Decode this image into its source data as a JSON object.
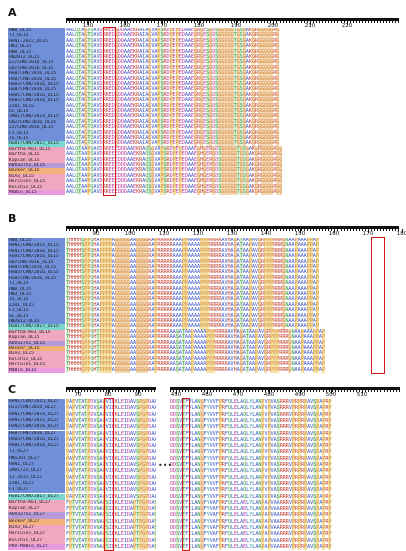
{
  "panels": [
    {
      "letter": "A",
      "ruler_labels": [
        "150",
        "160",
        "170",
        "180",
        "190",
        "200",
        "210",
        "220"
      ],
      "names": [
        {
          "label": "HN0_UL15",
          "group": "blue"
        },
        {
          "label": "TJ_UL15",
          "group": "blue"
        },
        {
          "label": "HeN1-2012_UL15",
          "group": "blue"
        },
        {
          "label": "HN3_UL15",
          "group": "blue"
        },
        {
          "label": "HN8_UL15",
          "group": "blue"
        },
        {
          "label": "HN2012_UL15",
          "group": "blue"
        },
        {
          "label": "ZJ/CHN/2016_UL15",
          "group": "blue"
        },
        {
          "label": "GD/CHN/2016_UL15",
          "group": "blue"
        },
        {
          "label": "HeB/CHN/2016_UL15",
          "group": "blue"
        },
        {
          "label": "HeB/CHN/2016_UL15",
          "group": "blue"
        },
        {
          "label": "HeB3/CHN/2016_UL15",
          "group": "blue"
        },
        {
          "label": "HuB/CHN/2016_UL15",
          "group": "blue"
        },
        {
          "label": "HeB1/CHN/2016_UL15",
          "group": "blue"
        },
        {
          "label": "HeB3/CHN/2016_UL15",
          "group": "blue"
        },
        {
          "label": "ZJ01_UL15",
          "group": "blue"
        },
        {
          "label": "SC_UL15",
          "group": "blue"
        },
        {
          "label": "SMD1/CHN/2014_UL15",
          "group": "blue"
        },
        {
          "label": "GD2/CHN/2016_UL15",
          "group": "blue"
        },
        {
          "label": "ZJ/CHN/2016_UL15",
          "group": "blue"
        },
        {
          "label": "FJ_UL15",
          "group": "blue"
        },
        {
          "label": "JS_UL15",
          "group": "blue"
        },
        {
          "label": "HuB1/CHN/2017_UL15",
          "group": "cyan"
        },
        {
          "label": "Bartha-K61_UL15",
          "group": "pink"
        },
        {
          "label": "Bartha_UL15",
          "group": "pink"
        },
        {
          "label": "Kaplan_UL15",
          "group": "pink"
        },
        {
          "label": "ADV32751_UL15",
          "group": "purple"
        },
        {
          "label": "Becker_UL15",
          "group": "orange"
        },
        {
          "label": "NIA3_UL15",
          "group": "pink"
        },
        {
          "label": "Hercules_UL15",
          "group": "pink"
        },
        {
          "label": "Kolchis_UL15",
          "group": "pink"
        },
        {
          "label": "MdBio_UL15",
          "group": "magenta"
        }
      ],
      "consensus": "AALQTAGTQAVDRREDGDDAAEKRAIAGVAPSRDPEPEDAAEGRGESGDSGGGGGTGSGAKGRGGGGGRG",
      "variant": "AALQTAAPQAVDRREEEDDDAAEKRAQSGVAPSRDPEPEDAAEGHGERGDSGGGGGTGSGAKGRGGGGRGG"
    },
    {
      "letter": "B",
      "ruler_labels": [
        "90",
        "100",
        "110",
        "120",
        "130",
        "140",
        "150",
        "160",
        "170",
        "180"
      ],
      "names": [
        {
          "label": "HN0_UL15",
          "group": "blue"
        },
        {
          "label": "HeN1/CHN/2015_UL15",
          "group": "blue"
        },
        {
          "label": "HeN1/CHN/2016_UL15",
          "group": "blue"
        },
        {
          "label": "AnH1/CHN/2016_UL15",
          "group": "blue"
        },
        {
          "label": "GD/CHN/2016_UL15",
          "group": "blue"
        },
        {
          "label": "HeB/CHN/2016_UL15",
          "group": "blue"
        },
        {
          "label": "HeB3/CHN/2016_UL15",
          "group": "blue"
        },
        {
          "label": "HuB/CHN/2016_UL15",
          "group": "blue"
        },
        {
          "label": "TJ_UL15",
          "group": "blue"
        },
        {
          "label": "HN8_UL15",
          "group": "blue"
        },
        {
          "label": "HN3_UL15",
          "group": "blue"
        },
        {
          "label": "JS_UL15",
          "group": "blue"
        },
        {
          "label": "ZJ01_UL15",
          "group": "blue"
        },
        {
          "label": "FJ_UL15",
          "group": "blue"
        },
        {
          "label": "SC_UL15",
          "group": "blue"
        },
        {
          "label": "HN2012_UL15",
          "group": "blue"
        },
        {
          "label": "HuB1/CHN/2017_UL15",
          "group": "cyan"
        },
        {
          "label": "Bartha-K61_UL15",
          "group": "pink"
        },
        {
          "label": "Kaplan_UL15",
          "group": "pink"
        },
        {
          "label": "ADV32751_UL15",
          "group": "purple"
        },
        {
          "label": "Becker_UL15",
          "group": "orange"
        },
        {
          "label": "NIA3_UL15",
          "group": "pink"
        },
        {
          "label": "Kolchis_UL15",
          "group": "pink"
        },
        {
          "label": "Hercules_UL15",
          "group": "pink"
        },
        {
          "label": "MdBio_UL15",
          "group": "magenta"
        }
      ],
      "consensus": "THHHHSPPQHAPPPPAGGGGGAAGGGGRAPRRRRRAAAPPAAAAPPPRRRRAVHAGATAAPAVGRPPPRRRGNAAPAAAPPAP",
      "variant": "THHHHGPPQHTPPPPAGGGGGAAGGGGRAPRRRRAASATAAPAAAAPPPRRRRAVHAGATAAPAVGRPPPRRRGNAAPAAAPPAP"
    },
    {
      "letter": "C",
      "ruler_labels_left": [
        "70",
        "80",
        "90"
      ],
      "ruler_labels_right": [
        "450",
        "460",
        "470",
        "480",
        "490",
        "500",
        "510"
      ],
      "ellipsis": "•••",
      "names": [
        {
          "label": "HeN1/CHN/2015_UL27",
          "group": "blue"
        },
        {
          "label": "HJ1/CHN/2014_UL27",
          "group": "blue"
        },
        {
          "label": "HeN1/CHN/2014_UL27",
          "group": "blue"
        },
        {
          "label": "HeN1/CHN/2015_UL27",
          "group": "blue"
        },
        {
          "label": "HeN2/CHN/2016_UL27",
          "group": "blue"
        },
        {
          "label": "HeB/CHN/2016_UL27",
          "group": "blue"
        },
        {
          "label": "HeB3/CHN/2016_UL27",
          "group": "blue"
        },
        {
          "label": "HeB1/CHN/2016_UL27",
          "group": "blue"
        },
        {
          "label": "TJ_UL27",
          "group": "blue"
        },
        {
          "label": "HN1201_UL27",
          "group": "blue"
        },
        {
          "label": "HeN1_UL27",
          "group": "blue"
        },
        {
          "label": "SMD1/ZZ_UL27",
          "group": "blue"
        },
        {
          "label": "ZJ-2012_UL27",
          "group": "blue"
        },
        {
          "label": "ZJ01_UL27",
          "group": "blue"
        },
        {
          "label": "FJ_UL27",
          "group": "blue"
        },
        {
          "label": "HuB1/CHN/2017_UL27",
          "group": "cyan"
        },
        {
          "label": "Bartha-K61_UL27",
          "group": "pink"
        },
        {
          "label": "Kaplan_UL27",
          "group": "pink"
        },
        {
          "label": "ADV32751_UL27",
          "group": "purple"
        },
        {
          "label": "Becker_UL27",
          "group": "orange"
        },
        {
          "label": "NIA3_UL27",
          "group": "pink"
        },
        {
          "label": "Hercules_UL27",
          "group": "pink"
        },
        {
          "label": "Kolchis_UL27",
          "group": "pink"
        },
        {
          "label": "PRV-MdBio_UL27",
          "group": "magenta"
        }
      ],
      "consensus_left": "PAPVTATPDVSAPVIEKLEIDAVSPGPDAA",
      "variant_left": "FPTVTATPDVNAPSIEKLEIDAPTPGPDAS",
      "consensus_right": "DDSVTFVLANGFYVVFPRFQLELAQLYLANPVPVASRRRVPRPRPAVSPAPRP",
      "variant_right": "DDSVTFILANGFYVAFPRFQLELAELYLANPAPVAARRRVPRPRPAVSPAPRP"
    }
  ],
  "colors": {
    "blue_group": "#6f8fd8",
    "cyan_group": "#7ad7d0",
    "pink_group": "#f0a8c0",
    "orange_group": "#f2b27a",
    "purple_group": "#b79ad8",
    "magenta_group": "#e89be0",
    "highlight_box": "#d01818"
  }
}
